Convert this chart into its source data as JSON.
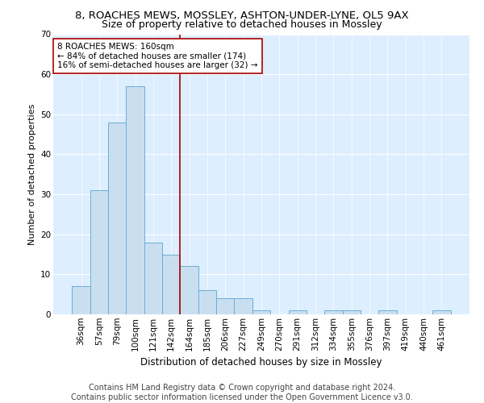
{
  "title1": "8, ROACHES MEWS, MOSSLEY, ASHTON-UNDER-LYNE, OL5 9AX",
  "title2": "Size of property relative to detached houses in Mossley",
  "xlabel": "Distribution of detached houses by size in Mossley",
  "ylabel": "Number of detached properties",
  "footer1": "Contains HM Land Registry data © Crown copyright and database right 2024.",
  "footer2": "Contains public sector information licensed under the Open Government Licence v3.0.",
  "categories": [
    "36sqm",
    "57sqm",
    "79sqm",
    "100sqm",
    "121sqm",
    "142sqm",
    "164sqm",
    "185sqm",
    "206sqm",
    "227sqm",
    "249sqm",
    "270sqm",
    "291sqm",
    "312sqm",
    "334sqm",
    "355sqm",
    "376sqm",
    "397sqm",
    "419sqm",
    "440sqm",
    "461sqm"
  ],
  "values": [
    7,
    31,
    48,
    57,
    18,
    15,
    12,
    6,
    4,
    4,
    1,
    0,
    1,
    0,
    1,
    1,
    0,
    1,
    0,
    0,
    1
  ],
  "bar_color": "#c9dff0",
  "bar_edge_color": "#6aaed6",
  "vline_x_index": 6,
  "vline_color": "#aa0000",
  "annotation_line1": "8 ROACHES MEWS: 160sqm",
  "annotation_line2": "← 84% of detached houses are smaller (174)",
  "annotation_line3": "16% of semi-detached houses are larger (32) →",
  "annotation_box_color": "#ffffff",
  "annotation_box_edge": "#aa0000",
  "ylim": [
    0,
    70
  ],
  "yticks": [
    0,
    10,
    20,
    30,
    40,
    50,
    60,
    70
  ],
  "background_color": "#ddeeff",
  "grid_color": "#ffffff",
  "title1_fontsize": 9.5,
  "title2_fontsize": 9,
  "xlabel_fontsize": 8.5,
  "ylabel_fontsize": 8,
  "tick_fontsize": 7.5,
  "footer_fontsize": 7,
  "annotation_fontsize": 7.5
}
